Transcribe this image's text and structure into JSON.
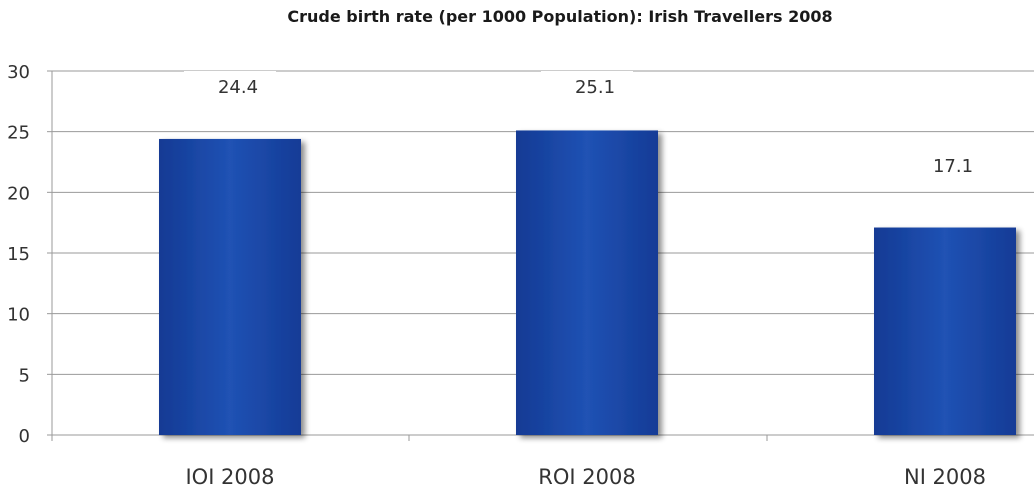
{
  "chart_data": {
    "type": "bar",
    "title": "Crude birth rate (per 1000 Population): Irish Travellers 2008",
    "categories": [
      "IOI 2008",
      "ROI 2008",
      "NI 2008"
    ],
    "values": [
      24.4,
      25.1,
      17.1
    ],
    "data_labels": [
      "24.4",
      "25.1",
      "17.1"
    ],
    "yticks": [
      "0",
      "5",
      "10",
      "15",
      "20",
      "25",
      "30"
    ],
    "ylim": [
      0,
      30
    ],
    "xlabel": "",
    "ylabel": "",
    "grid": true,
    "legend": "none",
    "bar_color": "#1a43a1",
    "bar_highlight": "#2f5ec0"
  }
}
